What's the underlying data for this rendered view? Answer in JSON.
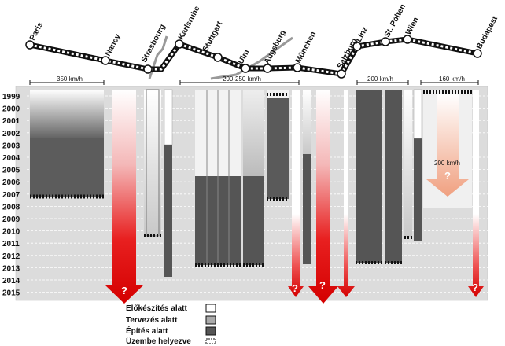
{
  "cities": [
    "Paris",
    "Nancy",
    "Strasbourg",
    "Karlsruhe",
    "Stuttgart",
    "Ulm",
    "Augsburg",
    "München",
    "Salzburg",
    "Linz",
    "St. Pölten",
    "Wien",
    "Budapest"
  ],
  "years": [
    "1999",
    "2000",
    "2001",
    "2002",
    "2003",
    "2004",
    "2005",
    "2006",
    "2007",
    "2008",
    "2009",
    "2010",
    "2011",
    "2012",
    "2013",
    "2014",
    "2015"
  ],
  "speeds": {
    "paris_nancy": "350 km/h",
    "karlsruhe_munchen": "200-250 km/h",
    "linz_wien": "200 km/h",
    "wien_budapest": "160 km/h",
    "wien_budapest_future": "200 km/h"
  },
  "question_mark": "?",
  "legend": {
    "preparation": "Előkészítés alatt",
    "planning": "Tervezés alatt",
    "construction": "Építés alatt",
    "operation": "Üzembe helyezve"
  },
  "colors": {
    "construction": "#555555",
    "planning": "#aaaaaa",
    "arrow": "#e01010",
    "track": "#111111"
  }
}
